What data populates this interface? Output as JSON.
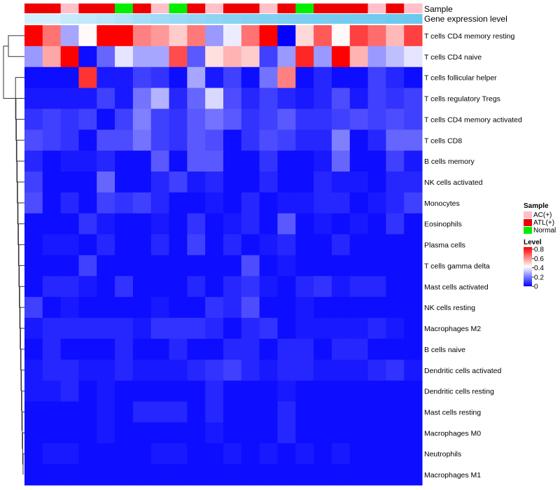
{
  "chart_data": {
    "type": "heatmap",
    "annotation_labels": [
      "Sample",
      "Gene expression level"
    ],
    "rows": [
      "T cells CD4 memory resting",
      "T cells CD4 naive",
      "T cells follicular helper",
      "T cells regulatory  Tregs",
      "T cells CD4 memory activated",
      "T cells CD8",
      "B cells memory",
      "NK cells activated",
      "Monocytes",
      "Eosinophils",
      "Plasma cells",
      "T cells gamma delta",
      "Mast cells activated",
      "NK cells resting",
      "Macrophages M2",
      "B cells naive",
      "Dendritic cells activated",
      "Dendritic cells resting",
      "Mast cells resting",
      "Macrophages M0",
      "Neutrophils",
      "Macrophages M1"
    ],
    "sample_groups": [
      "ATL(+)",
      "ATL(+)",
      "AC(+)",
      "ATL(+)",
      "ATL(+)",
      "Normal",
      "ATL(+)",
      "AC(+)",
      "Normal",
      "ATL(+)",
      "AC(+)",
      "ATL(+)",
      "ATL(+)",
      "AC(+)",
      "ATL(+)",
      "Normal",
      "ATL(+)",
      "ATL(+)",
      "ATL(+)",
      "AC(+)",
      "ATL(+)",
      "AC(+)"
    ],
    "expression_level": [
      0.1,
      0.1,
      0.2,
      0.25,
      0.3,
      0.4,
      0.5,
      0.55,
      0.6,
      0.65,
      0.7,
      0.75,
      0.8,
      0.82,
      0.85,
      0.88,
      0.9,
      0.92,
      0.94,
      0.96,
      0.98,
      1.0
    ],
    "values": [
      [
        0.8,
        0.62,
        0.26,
        0.41,
        0.8,
        0.8,
        0.6,
        0.56,
        0.48,
        0.61,
        0.24,
        0.37,
        0.62,
        0.8,
        0.0,
        0.46,
        0.66,
        0.41,
        0.7,
        0.63,
        0.51,
        0.7
      ],
      [
        0.24,
        0.54,
        0.8,
        0.02,
        0.16,
        0.36,
        0.26,
        0.26,
        0.68,
        0.14,
        0.45,
        0.52,
        0.48,
        0.1,
        0.24,
        0.74,
        0.24,
        0.8,
        0.52,
        0.24,
        0.3,
        0.36
      ],
      [
        0.02,
        0.02,
        0.02,
        0.72,
        0.04,
        0.04,
        0.1,
        0.08,
        0.02,
        0.26,
        0.04,
        0.1,
        0.02,
        0.18,
        0.6,
        0.02,
        0.06,
        0.02,
        0.02,
        0.1,
        0.06,
        0.02
      ],
      [
        0.04,
        0.04,
        0.04,
        0.04,
        0.1,
        0.04,
        0.18,
        0.28,
        0.06,
        0.16,
        0.34,
        0.12,
        0.06,
        0.1,
        0.06,
        0.04,
        0.06,
        0.12,
        0.04,
        0.1,
        0.08,
        0.1
      ],
      [
        0.08,
        0.1,
        0.08,
        0.1,
        0.02,
        0.1,
        0.2,
        0.1,
        0.08,
        0.14,
        0.18,
        0.14,
        0.08,
        0.1,
        0.14,
        0.08,
        0.08,
        0.1,
        0.12,
        0.1,
        0.12,
        0.1
      ],
      [
        0.12,
        0.1,
        0.08,
        0.02,
        0.12,
        0.12,
        0.18,
        0.1,
        0.08,
        0.14,
        0.12,
        0.02,
        0.08,
        0.12,
        0.1,
        0.06,
        0.06,
        0.2,
        0.02,
        0.06,
        0.16,
        0.16
      ],
      [
        0.06,
        0.02,
        0.04,
        0.04,
        0.06,
        0.02,
        0.02,
        0.14,
        0.02,
        0.14,
        0.14,
        0.02,
        0.02,
        0.08,
        0.02,
        0.02,
        0.04,
        0.16,
        0.02,
        0.02,
        0.1,
        0.04
      ],
      [
        0.1,
        0.02,
        0.02,
        0.02,
        0.16,
        0.02,
        0.02,
        0.06,
        0.1,
        0.04,
        0.06,
        0.02,
        0.02,
        0.06,
        0.02,
        0.02,
        0.06,
        0.04,
        0.04,
        0.02,
        0.06,
        0.06
      ],
      [
        0.12,
        0.02,
        0.06,
        0.02,
        0.1,
        0.08,
        0.1,
        0.06,
        0.02,
        0.02,
        0.04,
        0.02,
        0.06,
        0.02,
        0.04,
        0.04,
        0.06,
        0.06,
        0.02,
        0.04,
        0.06,
        0.1
      ],
      [
        0.02,
        0.02,
        0.02,
        0.08,
        0.04,
        0.02,
        0.02,
        0.04,
        0.02,
        0.08,
        0.02,
        0.04,
        0.06,
        0.02,
        0.14,
        0.02,
        0.04,
        0.02,
        0.04,
        0.02,
        0.08,
        0.02
      ],
      [
        0.02,
        0.04,
        0.04,
        0.02,
        0.06,
        0.02,
        0.02,
        0.06,
        0.02,
        0.1,
        0.02,
        0.06,
        0.02,
        0.04,
        0.06,
        0.02,
        0.02,
        0.06,
        0.02,
        0.02,
        0.02,
        0.02
      ],
      [
        0.02,
        0.02,
        0.02,
        0.1,
        0.02,
        0.02,
        0.02,
        0.02,
        0.02,
        0.02,
        0.02,
        0.02,
        0.12,
        0.02,
        0.04,
        0.02,
        0.02,
        0.02,
        0.02,
        0.02,
        0.02,
        0.02
      ],
      [
        0.02,
        0.06,
        0.06,
        0.04,
        0.02,
        0.08,
        0.02,
        0.02,
        0.02,
        0.06,
        0.02,
        0.06,
        0.08,
        0.04,
        0.02,
        0.06,
        0.08,
        0.04,
        0.06,
        0.06,
        0.02,
        0.02
      ],
      [
        0.1,
        0.02,
        0.04,
        0.02,
        0.02,
        0.02,
        0.02,
        0.04,
        0.02,
        0.02,
        0.08,
        0.06,
        0.12,
        0.02,
        0.02,
        0.04,
        0.02,
        0.02,
        0.02,
        0.02,
        0.02,
        0.02
      ],
      [
        0.04,
        0.06,
        0.06,
        0.06,
        0.06,
        0.06,
        0.04,
        0.08,
        0.08,
        0.08,
        0.06,
        0.02,
        0.06,
        0.08,
        0.02,
        0.04,
        0.04,
        0.04,
        0.04,
        0.06,
        0.04,
        0.02
      ],
      [
        0.02,
        0.06,
        0.02,
        0.02,
        0.02,
        0.06,
        0.02,
        0.02,
        0.06,
        0.02,
        0.02,
        0.06,
        0.06,
        0.02,
        0.06,
        0.06,
        0.02,
        0.06,
        0.06,
        0.02,
        0.02,
        0.02
      ],
      [
        0.04,
        0.06,
        0.06,
        0.04,
        0.04,
        0.06,
        0.04,
        0.04,
        0.04,
        0.06,
        0.08,
        0.1,
        0.06,
        0.04,
        0.06,
        0.06,
        0.04,
        0.04,
        0.04,
        0.06,
        0.08,
        0.04
      ],
      [
        0.04,
        0.04,
        0.06,
        0.02,
        0.04,
        0.02,
        0.02,
        0.02,
        0.02,
        0.02,
        0.06,
        0.02,
        0.02,
        0.02,
        0.04,
        0.02,
        0.02,
        0.02,
        0.02,
        0.02,
        0.02,
        0.02
      ],
      [
        0.02,
        0.02,
        0.02,
        0.02,
        0.04,
        0.02,
        0.06,
        0.06,
        0.06,
        0.02,
        0.06,
        0.02,
        0.02,
        0.02,
        0.06,
        0.02,
        0.02,
        0.02,
        0.02,
        0.02,
        0.02,
        0.02
      ],
      [
        0.02,
        0.02,
        0.02,
        0.02,
        0.04,
        0.02,
        0.02,
        0.02,
        0.02,
        0.02,
        0.04,
        0.02,
        0.02,
        0.02,
        0.06,
        0.02,
        0.02,
        0.02,
        0.02,
        0.02,
        0.02,
        0.02
      ],
      [
        0.02,
        0.04,
        0.04,
        0.02,
        0.02,
        0.02,
        0.02,
        0.04,
        0.04,
        0.02,
        0.02,
        0.04,
        0.02,
        0.04,
        0.02,
        0.04,
        0.02,
        0.04,
        0.02,
        0.02,
        0.02,
        0.02
      ],
      [
        0.02,
        0.02,
        0.02,
        0.02,
        0.02,
        0.02,
        0.02,
        0.02,
        0.02,
        0.02,
        0.02,
        0.02,
        0.02,
        0.02,
        0.02,
        0.02,
        0.02,
        0.02,
        0.02,
        0.02,
        0.02,
        0.02
      ]
    ],
    "legend": {
      "sample_title": "Sample",
      "sample_entries": [
        {
          "label": "AC(+)",
          "color": "#FFC0CB"
        },
        {
          "label": "ATL(+)",
          "color": "#EE0000"
        },
        {
          "label": "Normal",
          "color": "#00EE00"
        }
      ],
      "level_title": "Level",
      "level_ticks": [
        "0.8",
        "0.6",
        "0.4",
        "0.2",
        "0"
      ],
      "level_range": [
        0,
        0.8
      ]
    },
    "colors": {
      "low": "#0000FF",
      "mid": "#FFFFFF",
      "high": "#FF0000",
      "expr_low": "#DDF3FF",
      "expr_high": "#6CC8EE"
    }
  }
}
